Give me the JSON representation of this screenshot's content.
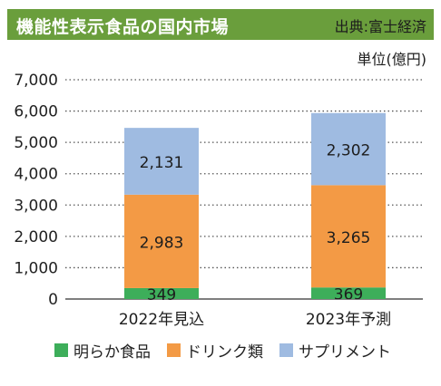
{
  "header": {
    "title": "機能性表示食品の国内市場",
    "source": "出典:富士経済"
  },
  "unit_label": "単位(億円)",
  "colors": {
    "title_bg": "#6a9e3c",
    "series": [
      "#3dae5a",
      "#f39a45",
      "#9fbbe1"
    ]
  },
  "chart_data": {
    "type": "bar",
    "stacked": true,
    "title": "機能性表示食品の国内市場",
    "ylabel": "単位(億円)",
    "ylim": [
      0,
      7000
    ],
    "yticks": [
      "0",
      "1,000",
      "2,000",
      "3,000",
      "4,000",
      "5,000",
      "6,000",
      "7,000"
    ],
    "categories": [
      "2022年見込",
      "2023年予測"
    ],
    "series": [
      {
        "name": "明らか食品",
        "values": [
          349,
          369
        ],
        "labels": [
          "349",
          "369"
        ]
      },
      {
        "name": "ドリンク類",
        "values": [
          2983,
          3265
        ],
        "labels": [
          "2,983",
          "3,265"
        ]
      },
      {
        "name": "サプリメント",
        "values": [
          2131,
          2302
        ],
        "labels": [
          "2,131",
          "2,302"
        ]
      }
    ],
    "grid": true,
    "legend": "bottom"
  }
}
